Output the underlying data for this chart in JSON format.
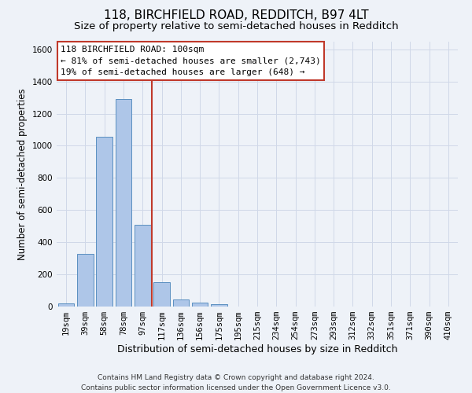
{
  "title": "118, BIRCHFIELD ROAD, REDDITCH, B97 4LT",
  "subtitle": "Size of property relative to semi-detached houses in Redditch",
  "xlabel": "Distribution of semi-detached houses by size in Redditch",
  "ylabel": "Number of semi-detached properties",
  "footer_line1": "Contains HM Land Registry data © Crown copyright and database right 2024.",
  "footer_line2": "Contains public sector information licensed under the Open Government Licence v3.0.",
  "annotation_title": "118 BIRCHFIELD ROAD: 100sqm",
  "annotation_line1": "← 81% of semi-detached houses are smaller (2,743)",
  "annotation_line2": "19% of semi-detached houses are larger (648) →",
  "bar_categories": [
    "19sqm",
    "39sqm",
    "58sqm",
    "78sqm",
    "97sqm",
    "117sqm",
    "136sqm",
    "156sqm",
    "175sqm",
    "195sqm",
    "215sqm",
    "234sqm",
    "254sqm",
    "273sqm",
    "293sqm",
    "312sqm",
    "332sqm",
    "351sqm",
    "371sqm",
    "390sqm",
    "410sqm"
  ],
  "bar_values": [
    20,
    330,
    1055,
    1290,
    510,
    150,
    45,
    25,
    15,
    0,
    0,
    0,
    0,
    0,
    0,
    0,
    0,
    0,
    0,
    0,
    0
  ],
  "bar_color": "#aec6e8",
  "bar_edge_color": "#5a8fc0",
  "highlight_color": "#c0392b",
  "ylim": [
    0,
    1650
  ],
  "yticks": [
    0,
    200,
    400,
    600,
    800,
    1000,
    1200,
    1400,
    1600
  ],
  "grid_color": "#d0d8e8",
  "background_color": "#eef2f8",
  "annotation_box_color": "#ffffff",
  "annotation_box_edge": "#c0392b",
  "title_fontsize": 11,
  "subtitle_fontsize": 9.5,
  "ylabel_fontsize": 8.5,
  "xlabel_fontsize": 9,
  "tick_fontsize": 7.5,
  "annotation_fontsize": 8,
  "footer_fontsize": 6.5
}
